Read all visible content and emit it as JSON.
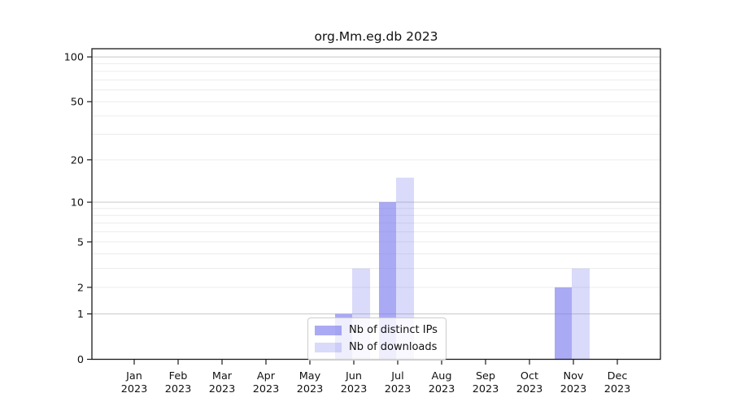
{
  "title": "org.Mm.eg.db 2023",
  "legend": {
    "items": [
      {
        "label": "Nb of distinct IPs"
      },
      {
        "label": "Nb of downloads"
      }
    ]
  },
  "chart_data": {
    "type": "bar",
    "title": "org.Mm.eg.db 2023",
    "x_categories": [
      {
        "month": "Jan",
        "year": "2023"
      },
      {
        "month": "Feb",
        "year": "2023"
      },
      {
        "month": "Mar",
        "year": "2023"
      },
      {
        "month": "Apr",
        "year": "2023"
      },
      {
        "month": "May",
        "year": "2023"
      },
      {
        "month": "Jun",
        "year": "2023"
      },
      {
        "month": "Jul",
        "year": "2023"
      },
      {
        "month": "Aug",
        "year": "2023"
      },
      {
        "month": "Sep",
        "year": "2023"
      },
      {
        "month": "Oct",
        "year": "2023"
      },
      {
        "month": "Nov",
        "year": "2023"
      },
      {
        "month": "Dec",
        "year": "2023"
      }
    ],
    "series": [
      {
        "name": "Nb of distinct IPs",
        "fill": "#7878ee",
        "fill_opacity": 0.63,
        "effective_color": "#a9a9ef",
        "values": [
          0,
          0,
          0,
          0,
          0,
          1,
          10,
          0,
          0,
          0,
          2,
          0
        ]
      },
      {
        "name": "Nb of downloads",
        "fill": "#7878ee",
        "fill_opacity": 0.27,
        "effective_color": "#d9d9f6",
        "values": [
          0,
          0,
          0,
          0,
          0,
          3,
          15,
          0,
          0,
          0,
          3,
          0
        ]
      }
    ],
    "yscale": "log1p",
    "ylim": [
      0,
      115
    ],
    "yticks": [
      100,
      50,
      20,
      10,
      5,
      2,
      1,
      0
    ],
    "grid": {
      "major_at": [
        1,
        10,
        100
      ],
      "minor_at": [
        2,
        3,
        4,
        5,
        6,
        7,
        8,
        9,
        20,
        30,
        40,
        50,
        60,
        70,
        80,
        90
      ],
      "major_color": "#c8c8c8",
      "minor_color": "#ececec"
    },
    "axis_color": "#1a1a1a",
    "legend_position": "lower center"
  }
}
